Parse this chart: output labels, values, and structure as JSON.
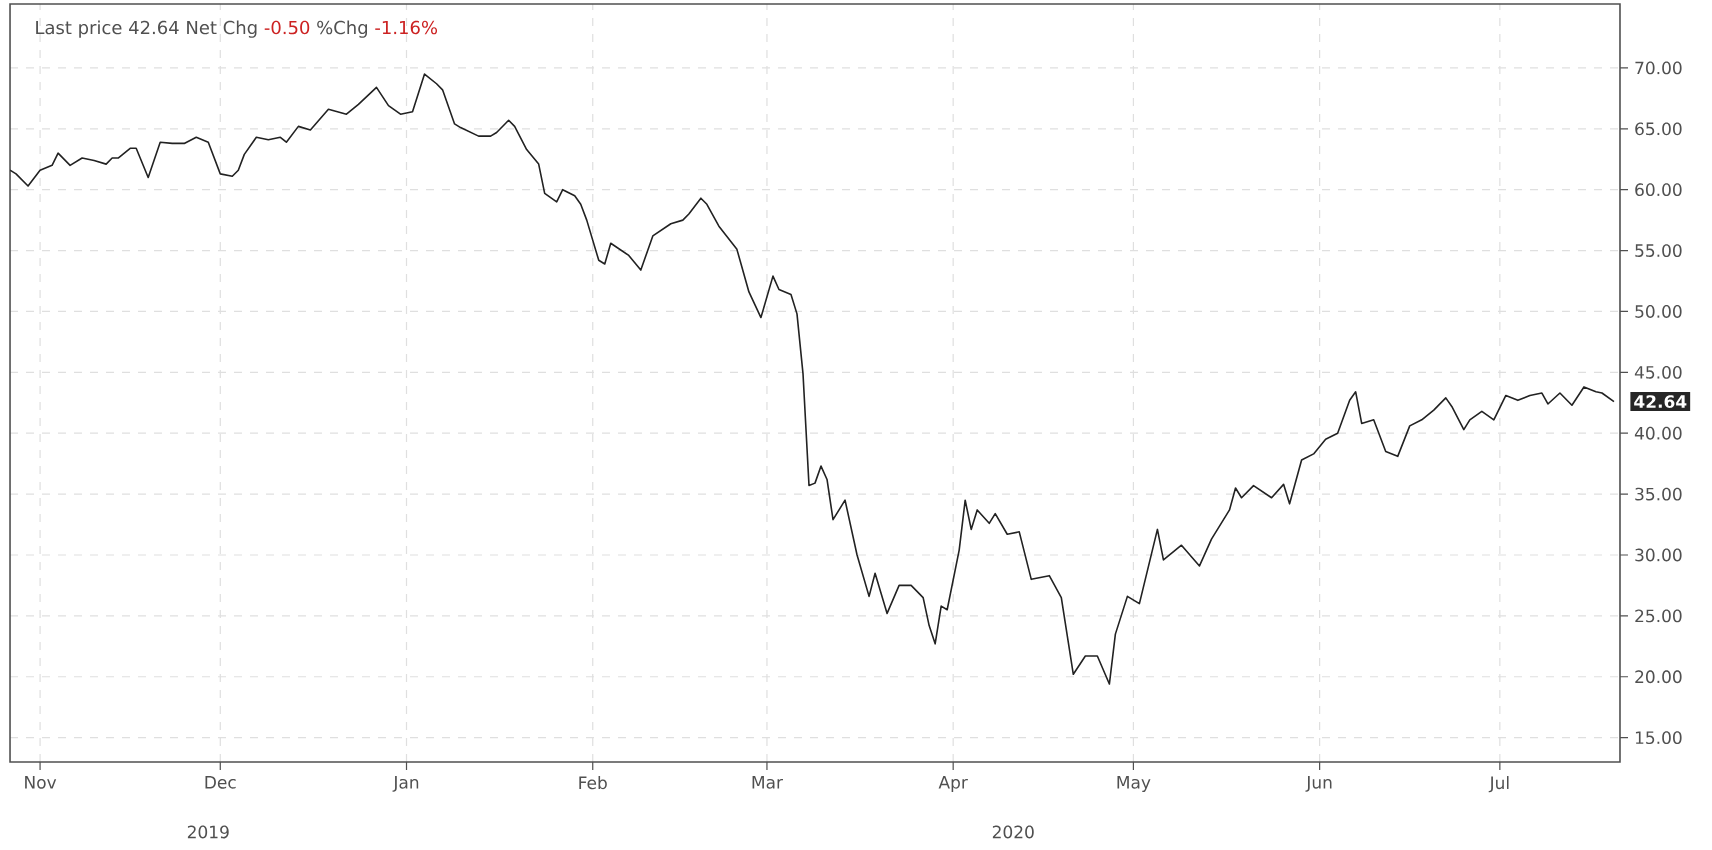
{
  "chart_data": {
    "type": "line",
    "annotations": [
      "Last price 42.64 Net Chg",
      "-0.50",
      "%Chg",
      "-1.16%",
      "42.64",
      "2019",
      "2020"
    ],
    "x": [
      "2019-10-27",
      "2019-10-28",
      "2019-10-30",
      "2019-11-01",
      "2019-11-03",
      "2019-11-04",
      "2019-11-06",
      "2019-11-08",
      "2019-11-10",
      "2019-11-12",
      "2019-11-13",
      "2019-11-14",
      "2019-11-16",
      "2019-11-17",
      "2019-11-19",
      "2019-11-21",
      "2019-11-23",
      "2019-11-25",
      "2019-11-27",
      "2019-11-29",
      "2019-12-01",
      "2019-12-03",
      "2019-12-04",
      "2019-12-05",
      "2019-12-07",
      "2019-12-09",
      "2019-12-11",
      "2019-12-12",
      "2019-12-14",
      "2019-12-16",
      "2019-12-19",
      "2019-12-22",
      "2019-12-24",
      "2019-12-27",
      "2019-12-29",
      "2019-12-31",
      "2020-01-02",
      "2020-01-04",
      "2020-01-06",
      "2020-01-07",
      "2020-01-09",
      "2020-01-10",
      "2020-01-13",
      "2020-01-15",
      "2020-01-16",
      "2020-01-18",
      "2020-01-19",
      "2020-01-21",
      "2020-01-23",
      "2020-01-24",
      "2020-01-26",
      "2020-01-27",
      "2020-01-29",
      "2020-01-30",
      "2020-01-31",
      "2020-02-02",
      "2020-02-03",
      "2020-02-04",
      "2020-02-07",
      "2020-02-09",
      "2020-02-11",
      "2020-02-14",
      "2020-02-16",
      "2020-02-17",
      "2020-02-19",
      "2020-02-20",
      "2020-02-22",
      "2020-02-25",
      "2020-02-27",
      "2020-02-29",
      "2020-03-02",
      "2020-03-03",
      "2020-03-05",
      "2020-03-06",
      "2020-03-07",
      "2020-03-08",
      "2020-03-09",
      "2020-03-10",
      "2020-03-11",
      "2020-03-12",
      "2020-03-14",
      "2020-03-16",
      "2020-03-18",
      "2020-03-19",
      "2020-03-21",
      "2020-03-23",
      "2020-03-25",
      "2020-03-27",
      "2020-03-28",
      "2020-03-29",
      "2020-03-30",
      "2020-03-31",
      "2020-04-02",
      "2020-04-03",
      "2020-04-04",
      "2020-04-05",
      "2020-04-07",
      "2020-04-08",
      "2020-04-10",
      "2020-04-12",
      "2020-04-14",
      "2020-04-17",
      "2020-04-19",
      "2020-04-21",
      "2020-04-23",
      "2020-04-25",
      "2020-04-27",
      "2020-04-28",
      "2020-04-30",
      "2020-05-02",
      "2020-05-05",
      "2020-05-06",
      "2020-05-09",
      "2020-05-12",
      "2020-05-14",
      "2020-05-17",
      "2020-05-18",
      "2020-05-19",
      "2020-05-21",
      "2020-05-24",
      "2020-05-26",
      "2020-05-27",
      "2020-05-29",
      "2020-05-31",
      "2020-06-02",
      "2020-06-04",
      "2020-06-06",
      "2020-06-07",
      "2020-06-08",
      "2020-06-10",
      "2020-06-12",
      "2020-06-14",
      "2020-06-16",
      "2020-06-18",
      "2020-06-20",
      "2020-06-22",
      "2020-06-23",
      "2020-06-25",
      "2020-06-26",
      "2020-06-28",
      "2020-06-30",
      "2020-07-02",
      "2020-07-04",
      "2020-07-06",
      "2020-07-08",
      "2020-07-09",
      "2020-07-11",
      "2020-07-13",
      "2020-07-15",
      "2020-07-17",
      "2020-07-18",
      "2020-07-20"
    ],
    "series": [
      {
        "color": "#222222",
        "values": [
          61.6,
          61.3,
          60.3,
          61.6,
          62.0,
          63.0,
          62.0,
          62.6,
          62.4,
          62.1,
          62.6,
          62.6,
          63.4,
          63.4,
          61.0,
          63.9,
          63.8,
          63.8,
          64.3,
          63.9,
          61.3,
          61.1,
          61.6,
          62.9,
          64.3,
          64.1,
          64.3,
          63.9,
          65.2,
          64.9,
          66.6,
          66.2,
          67.0,
          68.4,
          66.9,
          66.2,
          66.4,
          69.5,
          68.7,
          68.2,
          65.4,
          65.1,
          64.4,
          64.4,
          64.7,
          65.7,
          65.2,
          63.3,
          62.1,
          59.7,
          59.0,
          60.0,
          59.5,
          58.8,
          57.5,
          54.2,
          53.9,
          55.6,
          54.6,
          53.4,
          56.2,
          57.2,
          57.5,
          58.0,
          59.3,
          58.8,
          57.0,
          55.1,
          51.6,
          49.5,
          52.9,
          51.8,
          51.4,
          49.8,
          44.9,
          35.7,
          35.9,
          37.3,
          36.2,
          32.9,
          34.5,
          30.0,
          26.6,
          28.5,
          25.2,
          27.5,
          27.5,
          26.5,
          24.2,
          22.7,
          25.8,
          25.5,
          30.4,
          34.5,
          32.1,
          33.7,
          32.6,
          33.4,
          31.7,
          31.9,
          28.0,
          28.3,
          26.5,
          20.2,
          21.7,
          21.7,
          19.4,
          23.5,
          26.6,
          26.0,
          32.1,
          29.6,
          30.8,
          29.1,
          31.3,
          33.7,
          35.5,
          34.7,
          35.7,
          34.7,
          35.8,
          34.2,
          37.8,
          38.3,
          39.5,
          40.0,
          42.7,
          43.4,
          40.8,
          41.1,
          38.5,
          38.1,
          40.6,
          41.1,
          41.9,
          42.9,
          42.2,
          40.3,
          41.1,
          41.8,
          41.1,
          43.1,
          42.7,
          43.1,
          43.3,
          42.4,
          43.3,
          42.3,
          43.8,
          43.4,
          43.3,
          42.6
        ]
      }
    ],
    "xlim": [
      "2019-10-27",
      "2020-07-21"
    ],
    "xticks": [
      {
        "value": "2019-11-01",
        "label": "Nov"
      },
      {
        "value": "2019-12-01",
        "label": "Dec"
      },
      {
        "value": "2020-01-01",
        "label": "Jan"
      },
      {
        "value": "2020-02-01",
        "label": "Feb"
      },
      {
        "value": "2020-03-01",
        "label": "Mar"
      },
      {
        "value": "2020-04-01",
        "label": "Apr"
      },
      {
        "value": "2020-05-01",
        "label": "May"
      },
      {
        "value": "2020-06-01",
        "label": "Jun"
      },
      {
        "value": "2020-07-01",
        "label": "Jul"
      }
    ],
    "ylim": [
      13,
      75.25
    ],
    "yticks": [
      {
        "value": 15,
        "label": "15.00"
      },
      {
        "value": 20,
        "label": "20.00"
      },
      {
        "value": 25,
        "label": "25.00"
      },
      {
        "value": 30,
        "label": "30.00"
      },
      {
        "value": 35,
        "label": "35.00"
      },
      {
        "value": 40,
        "label": "40.00"
      },
      {
        "value": 45,
        "label": "45.00"
      },
      {
        "value": 50,
        "label": "50.00"
      },
      {
        "value": 55,
        "label": "55.00"
      },
      {
        "value": 60,
        "label": "60.00"
      },
      {
        "value": 65,
        "label": "65.00"
      },
      {
        "value": 70,
        "label": "70.00"
      }
    ],
    "grid": true
  }
}
